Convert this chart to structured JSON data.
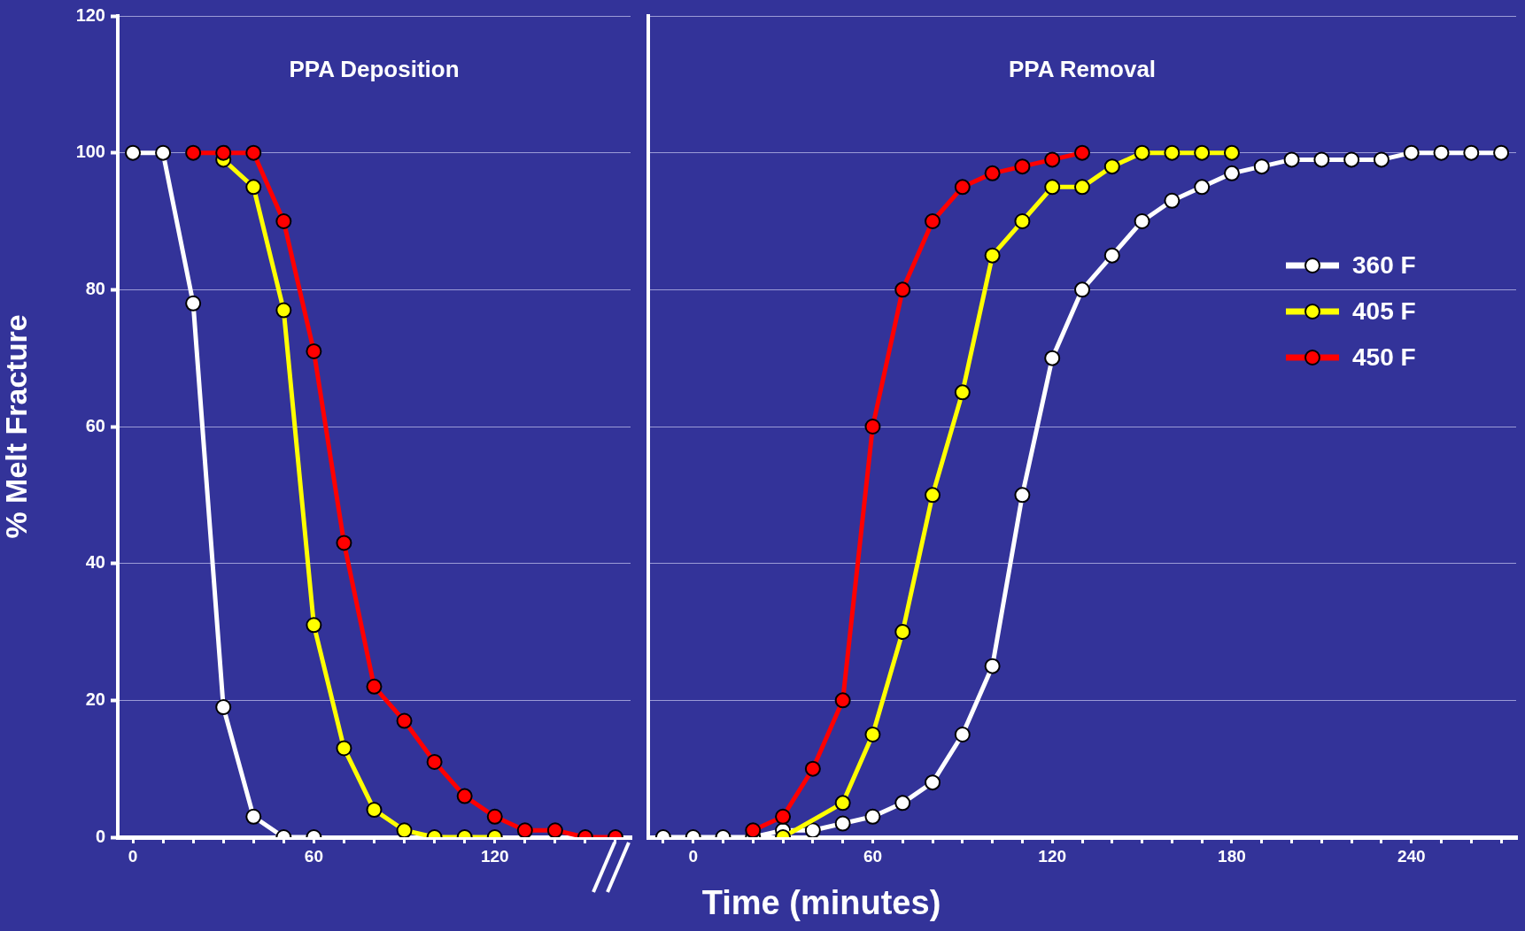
{
  "chart_data": [
    {
      "type": "line",
      "title": "PPA Deposition",
      "ylabel": "% Melt Fracture",
      "xlim": [
        -5,
        165
      ],
      "ylim": [
        0,
        120
      ],
      "yticks": [
        0,
        20,
        40,
        60,
        80,
        100,
        120
      ],
      "xticks": [
        0,
        {
          "value": 10,
          "label": null
        },
        {
          "value": 20,
          "label": null
        },
        {
          "value": 30,
          "label": null
        },
        {
          "value": 40,
          "label": null
        },
        {
          "value": 50,
          "label": null
        },
        60,
        {
          "value": 70,
          "label": null
        },
        {
          "value": 80,
          "label": null
        },
        {
          "value": 90,
          "label": null
        },
        {
          "value": 100,
          "label": null
        },
        {
          "value": 110,
          "label": null
        },
        120,
        {
          "value": 130,
          "label": null
        },
        {
          "value": 140,
          "label": null
        },
        {
          "value": 150,
          "label": null
        },
        {
          "value": 160,
          "label": null
        }
      ],
      "grid": "y",
      "marker": "circle",
      "line_style": "solid",
      "series": [
        {
          "color": "#ffffff",
          "x": [
            0,
            10,
            20,
            30,
            40,
            50,
            60
          ],
          "values": [
            100,
            100,
            78,
            19,
            3,
            0,
            0
          ]
        },
        {
          "color": "#ffff00",
          "x": [
            30,
            40,
            50,
            60,
            70,
            80,
            90,
            100,
            110,
            120
          ],
          "values": [
            99,
            95,
            77,
            31,
            13,
            4,
            1,
            0,
            0,
            0
          ]
        },
        {
          "color": "#ff0000",
          "x": [
            20,
            30,
            40,
            50,
            60,
            70,
            80,
            90,
            100,
            110,
            120,
            130,
            140,
            150,
            160
          ],
          "values": [
            100,
            100,
            100,
            90,
            71,
            43,
            22,
            17,
            11,
            6,
            3,
            1,
            1,
            0,
            0
          ]
        }
      ]
    },
    {
      "type": "line",
      "title": "PPA Removal",
      "xlabel": "Time (minutes)",
      "xlim": [
        -15,
        275
      ],
      "ylim": [
        0,
        120
      ],
      "yticks": [
        0,
        20,
        40,
        60,
        80,
        100,
        120
      ],
      "xticks": [
        {
          "value": -10,
          "label": null
        },
        0,
        {
          "value": 10,
          "label": null
        },
        {
          "value": 20,
          "label": null
        },
        {
          "value": 30,
          "label": null
        },
        {
          "value": 40,
          "label": null
        },
        {
          "value": 50,
          "label": null
        },
        60,
        {
          "value": 70,
          "label": null
        },
        {
          "value": 80,
          "label": null
        },
        {
          "value": 90,
          "label": null
        },
        {
          "value": 100,
          "label": null
        },
        {
          "value": 110,
          "label": null
        },
        120,
        {
          "value": 130,
          "label": null
        },
        {
          "value": 140,
          "label": null
        },
        {
          "value": 150,
          "label": null
        },
        {
          "value": 160,
          "label": null
        },
        {
          "value": 170,
          "label": null
        },
        180,
        {
          "value": 190,
          "label": null
        },
        {
          "value": 200,
          "label": null
        },
        {
          "value": 210,
          "label": null
        },
        {
          "value": 220,
          "label": null
        },
        {
          "value": 230,
          "label": null
        },
        240,
        {
          "value": 250,
          "label": null
        },
        {
          "value": 260,
          "label": null
        },
        {
          "value": 270,
          "label": null
        }
      ],
      "grid": "y",
      "tick_labels": "x",
      "legend": "right",
      "marker": "circle",
      "line_style": "solid",
      "series": [
        {
          "name": "360 F",
          "color": "#ffffff",
          "x": [
            -10,
            0,
            10,
            20,
            30,
            40,
            50,
            60,
            70,
            80,
            90,
            100,
            110,
            120,
            130,
            140,
            150,
            160,
            170,
            180,
            190,
            200,
            210,
            220,
            230,
            240,
            250,
            260,
            270
          ],
          "values": [
            0,
            0,
            0,
            0,
            1,
            1,
            2,
            3,
            5,
            8,
            15,
            25,
            50,
            70,
            80,
            85,
            90,
            93,
            95,
            97,
            98,
            99,
            99,
            99,
            99,
            100,
            100,
            100,
            100
          ]
        },
        {
          "name": "405 F",
          "color": "#ffff00",
          "x": [
            30,
            40,
            50,
            60,
            70,
            80,
            90,
            100,
            110,
            120,
            130,
            140,
            150,
            160,
            170,
            180
          ],
          "values": [
            0,
            null,
            5,
            15,
            30,
            50,
            65,
            85,
            90,
            95,
            95,
            98,
            100,
            100,
            100,
            100
          ]
        },
        {
          "name": "450 F",
          "color": "#ff0000",
          "x": [
            20,
            30,
            40,
            50,
            60,
            70,
            80,
            90,
            100,
            110,
            120,
            130
          ],
          "values": [
            1,
            3,
            10,
            20,
            60,
            80,
            90,
            95,
            97,
            98,
            99,
            100
          ]
        }
      ]
    }
  ]
}
